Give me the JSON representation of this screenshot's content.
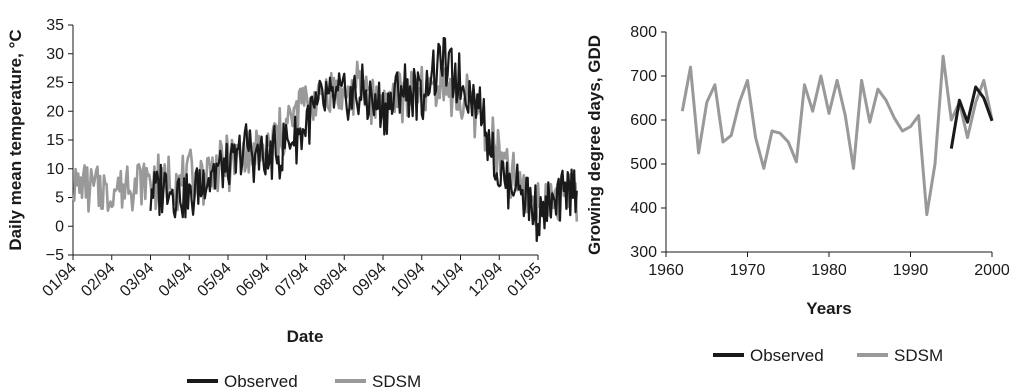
{
  "legend": {
    "observed": "Observed",
    "sdsm": "SDSM"
  },
  "colors": {
    "observed": "#1a1a1a",
    "sdsm": "#999999"
  },
  "chart_data": [
    {
      "type": "line",
      "xlabel": "Date",
      "ylabel": "Daily mean temperature, °C",
      "ylim": [
        -5,
        35
      ],
      "yticks": [
        -5,
        0,
        5,
        10,
        15,
        20,
        25,
        30,
        35
      ],
      "x_tick_labels": [
        "01/94",
        "02/94",
        "03/94",
        "04/94",
        "05/94",
        "06/94",
        "07/94",
        "08/94",
        "09/94",
        "10/94",
        "11/94",
        "12/94",
        "01/95"
      ],
      "legend_position": "bottom",
      "grid": false,
      "series": [
        {
          "name": "Observed",
          "x_months": [
            2.0,
            2.5,
            3.0,
            3.5,
            4.0,
            4.5,
            5.0,
            5.5,
            6.0,
            6.5,
            7.0,
            7.5,
            8.0,
            8.5,
            9.0,
            9.5,
            10.0,
            10.5,
            11.0,
            11.5,
            12.0,
            12.5,
            13.0
          ],
          "values": [
            6,
            7,
            5,
            9,
            10,
            14,
            11,
            14,
            18,
            22,
            22,
            23,
            20,
            24,
            23,
            29,
            25,
            21,
            9,
            7,
            2,
            4,
            8
          ]
        },
        {
          "name": "SDSM",
          "x_months": [
            0.0,
            0.5,
            1.0,
            1.5,
            2.0,
            2.5,
            3.0,
            3.5,
            4.0,
            4.5,
            5.0,
            5.5,
            6.0,
            6.5,
            7.0,
            7.5,
            8.0,
            8.5,
            9.0,
            9.5,
            10.0,
            10.5,
            11.0,
            11.5,
            12.0,
            12.5,
            13.0
          ],
          "values": [
            8,
            7,
            6,
            8,
            7,
            8,
            8,
            9,
            11,
            13,
            13,
            17,
            22,
            23,
            23,
            24,
            22,
            23,
            23,
            25,
            22,
            20,
            11,
            7,
            4,
            5,
            6
          ]
        }
      ]
    },
    {
      "type": "line",
      "xlabel": "Years",
      "ylabel": "Growing degree days, GDD",
      "xlim": [
        1960,
        2000
      ],
      "ylim": [
        300,
        800
      ],
      "xticks": [
        1960,
        1970,
        1980,
        1990,
        2000
      ],
      "yticks": [
        300,
        400,
        500,
        600,
        700,
        800
      ],
      "legend_position": "bottom",
      "grid": false,
      "series": [
        {
          "name": "Observed",
          "x": [
            1995,
            1996,
            1997,
            1998,
            1999,
            2000
          ],
          "values": [
            535,
            645,
            595,
            675,
            650,
            598
          ]
        },
        {
          "name": "SDSM",
          "x": [
            1962,
            1963,
            1964,
            1965,
            1966,
            1967,
            1968,
            1969,
            1970,
            1971,
            1972,
            1973,
            1974,
            1975,
            1976,
            1977,
            1978,
            1979,
            1980,
            1981,
            1982,
            1983,
            1984,
            1985,
            1986,
            1987,
            1988,
            1989,
            1990,
            1991,
            1992,
            1993,
            1994,
            1995,
            1996,
            1997,
            1998,
            1999,
            2000
          ],
          "values": [
            620,
            720,
            525,
            640,
            680,
            550,
            565,
            640,
            690,
            560,
            490,
            575,
            570,
            550,
            505,
            680,
            620,
            700,
            615,
            690,
            610,
            490,
            690,
            595,
            670,
            645,
            605,
            575,
            585,
            610,
            385,
            500,
            745,
            600,
            640,
            560,
            640,
            690,
            600
          ]
        }
      ]
    }
  ]
}
